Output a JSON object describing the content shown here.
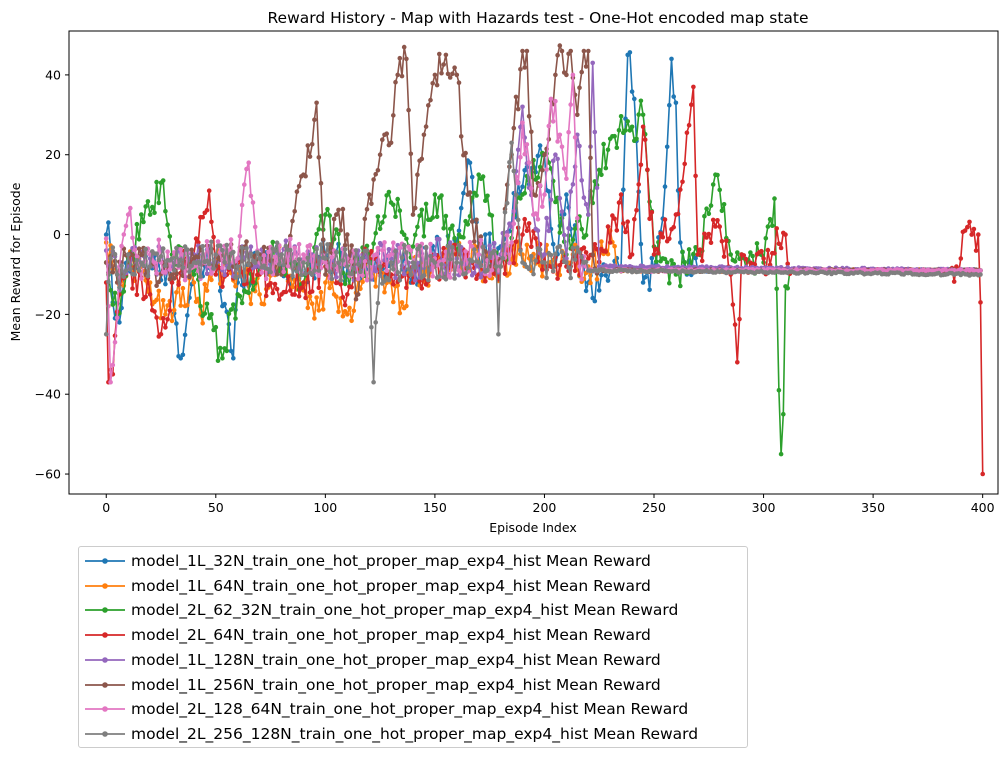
{
  "chart_data": {
    "type": "line",
    "title": "Reward History - Map with Hazards test - One-Hot encoded map state",
    "xlabel": "Episode Index",
    "ylabel": "Mean Reward for Episode",
    "xlim": [
      -17,
      407
    ],
    "ylim": [
      -65,
      51
    ],
    "xticks": [
      0,
      50,
      100,
      150,
      200,
      250,
      300,
      350,
      400
    ],
    "yticks": [
      -60,
      -40,
      -20,
      0,
      20,
      40
    ],
    "legend_placement": "below chart, left",
    "grid": false,
    "series": [
      {
        "name": "model_1L_32N_train_one_hot_proper_map_exp4_hist Mean Reward",
        "color": "#1f77b4",
        "key_points": [
          [
            0,
            0
          ],
          [
            1,
            3
          ],
          [
            3,
            -17
          ],
          [
            6,
            -22
          ],
          [
            10,
            -5
          ],
          [
            20,
            -8
          ],
          [
            30,
            -12
          ],
          [
            34,
            -31
          ],
          [
            40,
            -10
          ],
          [
            50,
            -6
          ],
          [
            58,
            -31
          ],
          [
            60,
            -12
          ],
          [
            70,
            -5
          ],
          [
            80,
            -8
          ],
          [
            90,
            -10
          ],
          [
            100,
            -5
          ],
          [
            110,
            -8
          ],
          [
            120,
            -7
          ],
          [
            130,
            -6
          ],
          [
            140,
            -9
          ],
          [
            150,
            -5
          ],
          [
            160,
            -2
          ],
          [
            166,
            18
          ],
          [
            170,
            -5
          ],
          [
            180,
            -3
          ],
          [
            190,
            12
          ],
          [
            200,
            20
          ],
          [
            205,
            -8
          ],
          [
            210,
            10
          ],
          [
            215,
            -5
          ],
          [
            220,
            -12
          ],
          [
            225,
            -14
          ],
          [
            230,
            -9
          ],
          [
            235,
            -8
          ],
          [
            238,
            45
          ],
          [
            241,
            34
          ],
          [
            245,
            -12
          ],
          [
            250,
            -9
          ],
          [
            254,
            4
          ],
          [
            256,
            22
          ],
          [
            258,
            44
          ],
          [
            260,
            33
          ],
          [
            262,
            -2
          ],
          [
            265,
            -10
          ],
          [
            270,
            -9
          ],
          [
            399,
            -9
          ]
        ]
      },
      {
        "name": "model_1L_64N_train_one_hot_proper_map_exp4_hist Mean Reward",
        "color": "#ff7f0e",
        "key_points": [
          [
            0,
            -2
          ],
          [
            5,
            -10
          ],
          [
            10,
            -8
          ],
          [
            20,
            -12
          ],
          [
            27,
            -20
          ],
          [
            40,
            -12
          ],
          [
            43,
            -20
          ],
          [
            50,
            -8
          ],
          [
            60,
            -10
          ],
          [
            70,
            -15
          ],
          [
            80,
            -6
          ],
          [
            90,
            -14
          ],
          [
            97,
            -19
          ],
          [
            100,
            -12
          ],
          [
            110,
            -20
          ],
          [
            120,
            -8
          ],
          [
            130,
            -12
          ],
          [
            135,
            -17
          ],
          [
            140,
            -10
          ],
          [
            150,
            -8
          ],
          [
            160,
            -6
          ],
          [
            170,
            -7
          ],
          [
            180,
            -8
          ],
          [
            190,
            -5
          ],
          [
            200,
            -7
          ],
          [
            210,
            -6
          ],
          [
            220,
            -8
          ],
          [
            225,
            -7
          ],
          [
            230,
            1
          ],
          [
            233,
            -9
          ],
          [
            399,
            -9
          ]
        ]
      },
      {
        "name": "model_2L_62_32N_train_one_hot_proper_map_exp4_hist Mean Reward",
        "color": "#2ca02c",
        "key_points": [
          [
            0,
            -7
          ],
          [
            5,
            -20
          ],
          [
            10,
            -6
          ],
          [
            20,
            5
          ],
          [
            25,
            13
          ],
          [
            30,
            -5
          ],
          [
            40,
            -10
          ],
          [
            53,
            -31
          ],
          [
            60,
            -15
          ],
          [
            70,
            -8
          ],
          [
            80,
            -5
          ],
          [
            90,
            -12
          ],
          [
            100,
            5
          ],
          [
            110,
            -10
          ],
          [
            120,
            -5
          ],
          [
            130,
            8
          ],
          [
            140,
            -3
          ],
          [
            150,
            10
          ],
          [
            160,
            -5
          ],
          [
            170,
            15
          ],
          [
            180,
            -8
          ],
          [
            190,
            10
          ],
          [
            200,
            20
          ],
          [
            210,
            -5
          ],
          [
            220,
            5
          ],
          [
            230,
            24
          ],
          [
            240,
            27
          ],
          [
            245,
            30
          ],
          [
            250,
            -3
          ],
          [
            260,
            -10
          ],
          [
            270,
            -5
          ],
          [
            278,
            15
          ],
          [
            285,
            -5
          ],
          [
            290,
            -5
          ],
          [
            300,
            -7
          ],
          [
            305,
            9
          ],
          [
            307,
            -39
          ],
          [
            308,
            -55
          ],
          [
            309,
            -45
          ],
          [
            310,
            -13
          ],
          [
            312,
            -9
          ],
          [
            399,
            -9
          ]
        ]
      },
      {
        "name": "model_2L_64N_train_one_hot_proper_map_exp4_hist Mean Reward",
        "color": "#d62728",
        "key_points": [
          [
            0,
            -12
          ],
          [
            1,
            -37
          ],
          [
            3,
            -35
          ],
          [
            6,
            -15
          ],
          [
            10,
            -8
          ],
          [
            20,
            -15
          ],
          [
            25,
            -25
          ],
          [
            30,
            -12
          ],
          [
            40,
            -5
          ],
          [
            47,
            11
          ],
          [
            50,
            -10
          ],
          [
            60,
            -8
          ],
          [
            70,
            -10
          ],
          [
            80,
            -15
          ],
          [
            90,
            -12
          ],
          [
            100,
            -8
          ],
          [
            110,
            -15
          ],
          [
            120,
            -6
          ],
          [
            130,
            -10
          ],
          [
            140,
            -12
          ],
          [
            150,
            -8
          ],
          [
            160,
            -5
          ],
          [
            170,
            -10
          ],
          [
            180,
            -8
          ],
          [
            190,
            0
          ],
          [
            200,
            -5
          ],
          [
            210,
            -8
          ],
          [
            220,
            -6
          ],
          [
            230,
            -2
          ],
          [
            235,
            10
          ],
          [
            240,
            -5
          ],
          [
            245,
            27
          ],
          [
            250,
            -5
          ],
          [
            260,
            5
          ],
          [
            268,
            37
          ],
          [
            270,
            -5
          ],
          [
            280,
            2
          ],
          [
            285,
            -10
          ],
          [
            288,
            -32
          ],
          [
            290,
            -5
          ],
          [
            300,
            -6
          ],
          [
            310,
            0
          ],
          [
            313,
            -9
          ],
          [
            385,
            -9
          ],
          [
            390,
            -6
          ],
          [
            392,
            1
          ],
          [
            395,
            0
          ],
          [
            398,
            0
          ],
          [
            399,
            -17
          ],
          [
            400,
            -60
          ]
        ]
      },
      {
        "name": "model_1L_128N_train_one_hot_proper_map_exp4_hist Mean Reward",
        "color": "#9467bd",
        "key_points": [
          [
            0,
            -4
          ],
          [
            5,
            -10
          ],
          [
            10,
            -8
          ],
          [
            20,
            -6
          ],
          [
            30,
            -8
          ],
          [
            40,
            -5
          ],
          [
            50,
            -7
          ],
          [
            60,
            -6
          ],
          [
            70,
            -8
          ],
          [
            80,
            -5
          ],
          [
            90,
            -7
          ],
          [
            100,
            -6
          ],
          [
            110,
            -8
          ],
          [
            120,
            -7
          ],
          [
            130,
            -6
          ],
          [
            140,
            -8
          ],
          [
            150,
            -5
          ],
          [
            160,
            -6
          ],
          [
            170,
            -8
          ],
          [
            180,
            -5
          ],
          [
            185,
            2
          ],
          [
            190,
            32
          ],
          [
            195,
            5
          ],
          [
            200,
            -5
          ],
          [
            205,
            20
          ],
          [
            210,
            -6
          ],
          [
            215,
            25
          ],
          [
            220,
            5
          ],
          [
            222,
            43
          ],
          [
            225,
            -8
          ],
          [
            399,
            -9
          ]
        ]
      },
      {
        "name": "model_1L_256N_train_one_hot_proper_map_exp4_hist Mean Reward",
        "color": "#8c564b",
        "key_points": [
          [
            0,
            -7
          ],
          [
            5,
            -12
          ],
          [
            10,
            -5
          ],
          [
            20,
            -8
          ],
          [
            30,
            -10
          ],
          [
            40,
            -6
          ],
          [
            50,
            -8
          ],
          [
            60,
            -6
          ],
          [
            70,
            -5
          ],
          [
            80,
            -10
          ],
          [
            90,
            15
          ],
          [
            96,
            33
          ],
          [
            100,
            -10
          ],
          [
            105,
            5
          ],
          [
            110,
            0
          ],
          [
            115,
            -15
          ],
          [
            120,
            10
          ],
          [
            125,
            20
          ],
          [
            130,
            23
          ],
          [
            133,
            40
          ],
          [
            137,
            44
          ],
          [
            140,
            5
          ],
          [
            145,
            25
          ],
          [
            150,
            40
          ],
          [
            155,
            45
          ],
          [
            160,
            40
          ],
          [
            165,
            10
          ],
          [
            170,
            -3
          ],
          [
            175,
            -8
          ],
          [
            180,
            -8
          ],
          [
            185,
            20
          ],
          [
            190,
            46
          ],
          [
            192,
            46
          ],
          [
            195,
            10
          ],
          [
            200,
            20
          ],
          [
            205,
            40
          ],
          [
            208,
            46
          ],
          [
            210,
            40
          ],
          [
            212,
            46
          ],
          [
            215,
            30
          ],
          [
            218,
            46
          ],
          [
            220,
            46
          ],
          [
            222,
            -5
          ],
          [
            225,
            -9
          ],
          [
            399,
            -9
          ]
        ]
      },
      {
        "name": "model_2L_128_64N_train_one_hot_proper_map_exp4_hist Mean Reward",
        "color": "#e377c2",
        "key_points": [
          [
            0,
            -1
          ],
          [
            2,
            -37
          ],
          [
            4,
            -27
          ],
          [
            6,
            -8
          ],
          [
            10,
            5
          ],
          [
            15,
            -8
          ],
          [
            20,
            -5
          ],
          [
            30,
            -6
          ],
          [
            40,
            -8
          ],
          [
            50,
            -5
          ],
          [
            60,
            -6
          ],
          [
            65,
            18
          ],
          [
            70,
            -7
          ],
          [
            80,
            -6
          ],
          [
            90,
            -5
          ],
          [
            100,
            -7
          ],
          [
            110,
            -6
          ],
          [
            120,
            -8
          ],
          [
            130,
            -5
          ],
          [
            140,
            -7
          ],
          [
            150,
            -6
          ],
          [
            160,
            -8
          ],
          [
            170,
            -5
          ],
          [
            180,
            -7
          ],
          [
            185,
            -2
          ],
          [
            190,
            28
          ],
          [
            195,
            5
          ],
          [
            200,
            10
          ],
          [
            203,
            34
          ],
          [
            207,
            25
          ],
          [
            210,
            14
          ],
          [
            213,
            40
          ],
          [
            216,
            -8
          ],
          [
            220,
            -9
          ],
          [
            399,
            -9
          ]
        ]
      },
      {
        "name": "model_2L_256_128N_train_one_hot_proper_map_exp4_hist Mean Reward",
        "color": "#7f7f7f",
        "key_points": [
          [
            0,
            -25
          ],
          [
            2,
            -6
          ],
          [
            5,
            -10
          ],
          [
            10,
            -5
          ],
          [
            20,
            -8
          ],
          [
            30,
            -6
          ],
          [
            40,
            -7
          ],
          [
            50,
            -5
          ],
          [
            60,
            -8
          ],
          [
            70,
            -6
          ],
          [
            80,
            -5
          ],
          [
            90,
            -7
          ],
          [
            100,
            -6
          ],
          [
            110,
            -8
          ],
          [
            120,
            -7
          ],
          [
            122,
            -37
          ],
          [
            123,
            -22
          ],
          [
            125,
            -8
          ],
          [
            130,
            -7
          ],
          [
            140,
            -7
          ],
          [
            150,
            -7
          ],
          [
            160,
            -7
          ],
          [
            170,
            -7
          ],
          [
            178,
            -8
          ],
          [
            179,
            -25
          ],
          [
            180,
            -8
          ],
          [
            185,
            23
          ],
          [
            190,
            -7
          ],
          [
            200,
            -7
          ],
          [
            210,
            -7
          ],
          [
            218,
            -7
          ],
          [
            220,
            -9
          ],
          [
            399,
            -10
          ]
        ]
      }
    ]
  }
}
